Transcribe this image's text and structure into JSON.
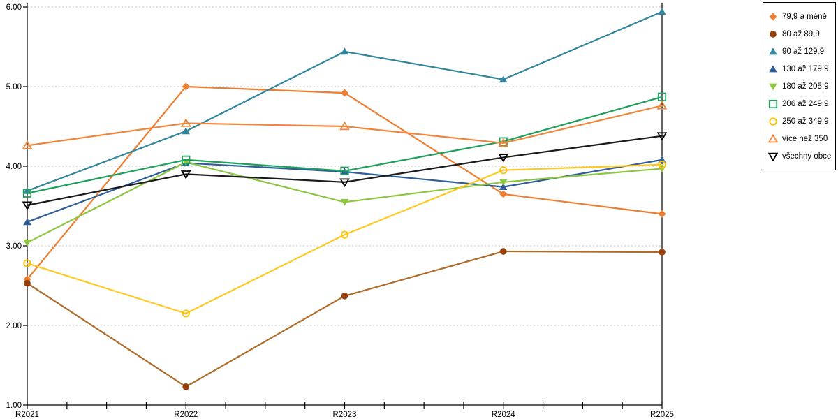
{
  "chart_data": {
    "type": "line",
    "categories": [
      "R2021",
      "R2022",
      "R2023",
      "R2024",
      "R2025"
    ],
    "series": [
      {
        "name": "79,9 a méně",
        "marker": "diamond-filled",
        "color": "#ED7D31",
        "line_color": "#ED7D31",
        "values": [
          2.58,
          5.0,
          4.92,
          3.65,
          3.4
        ]
      },
      {
        "name": "80 až 89,9",
        "marker": "circle-filled",
        "color": "#963F08",
        "line_color": "#AF6B28",
        "values": [
          2.53,
          1.23,
          2.37,
          2.93,
          2.92
        ]
      },
      {
        "name": "90 až 129,9",
        "marker": "triangle-up-filled",
        "color": "#31859C",
        "line_color": "#31859C",
        "values": [
          3.69,
          4.44,
          5.44,
          5.09,
          5.94
        ]
      },
      {
        "name": "130 až 179,9",
        "marker": "triangle-up-filled",
        "color": "#2E5E99",
        "line_color": "#2E5E99",
        "values": [
          3.3,
          4.04,
          3.93,
          3.74,
          4.08
        ]
      },
      {
        "name": "180 až 205,9",
        "marker": "triangle-down-filled",
        "color": "#8DC63F",
        "line_color": "#8DC63F",
        "values": [
          3.04,
          4.05,
          3.55,
          3.8,
          3.97
        ]
      },
      {
        "name": "206 až 249,9",
        "marker": "square-open",
        "color": "#1FA05A",
        "line_color": "#1FA05A",
        "values": [
          3.66,
          4.08,
          3.94,
          4.31,
          4.87
        ]
      },
      {
        "name": "250 až 349,9",
        "marker": "circle-open",
        "color": "#FFC000",
        "line_color": "#FFC822",
        "values": [
          2.78,
          2.15,
          3.14,
          3.95,
          4.02
        ]
      },
      {
        "name": "více než 350",
        "marker": "triangle-up-open",
        "color": "#F0863E",
        "line_color": "#F0863E",
        "values": [
          4.26,
          4.54,
          4.5,
          4.29,
          4.76
        ]
      },
      {
        "name": "všechny obce",
        "marker": "triangle-down-open",
        "color": "#000000",
        "line_color": "#1A1A1A",
        "values": [
          3.51,
          3.9,
          3.8,
          4.11,
          4.38
        ]
      }
    ],
    "ylim": [
      1,
      6
    ],
    "yticks": [
      "1.00",
      "2.00",
      "3.00",
      "4.00",
      "5.00",
      "6.00"
    ],
    "grid": "horizontal-dotted",
    "grid_color": "#BFBFBF",
    "axis_color": "#000000",
    "background": "#FFFFFF",
    "legend_position": "right",
    "title": "",
    "xlabel": "",
    "ylabel": ""
  }
}
